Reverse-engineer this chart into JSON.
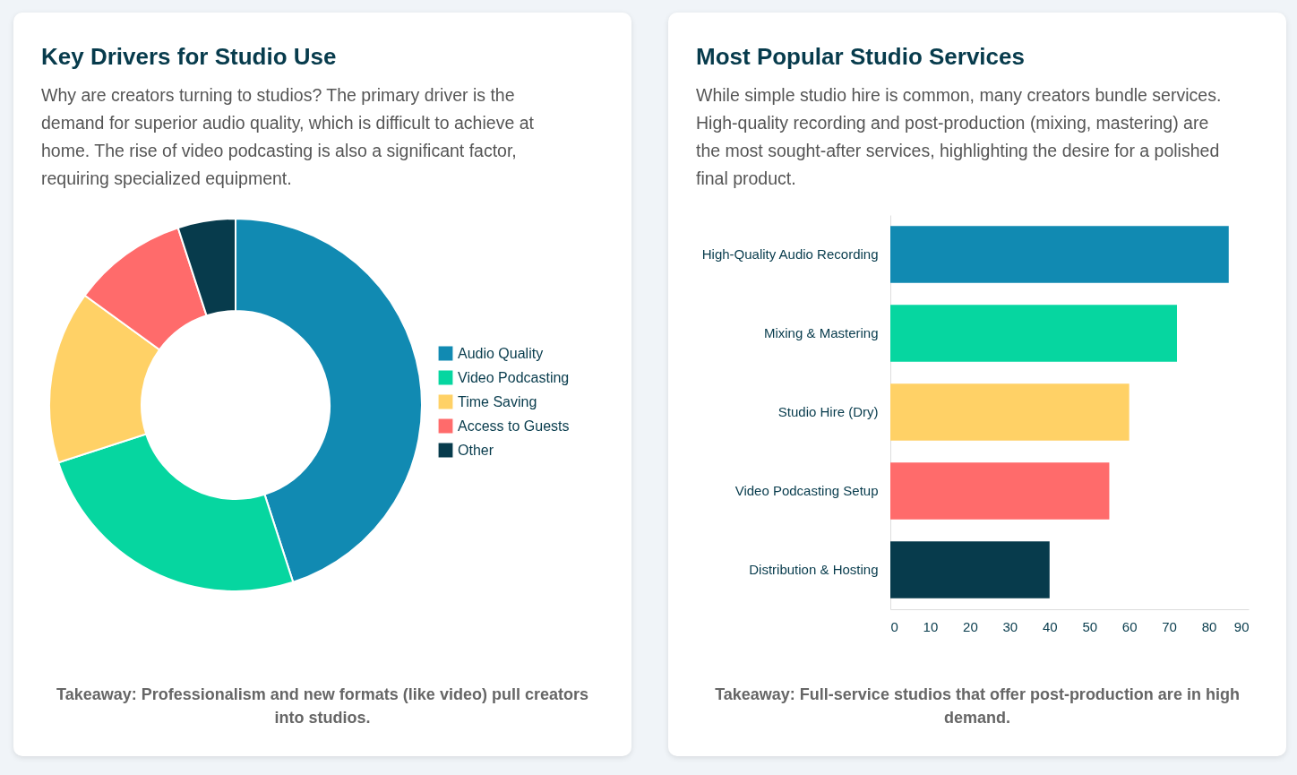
{
  "chart_data": [
    {
      "type": "donut",
      "title": "Key Drivers for Studio Use",
      "subtitle": "Why are creators turning to studios? The primary driver is the demand for superior audio quality, which is difficult to achieve at home. The rise of video podcasting is also a significant factor, requiring specialized equipment.",
      "categories": [
        "Audio Quality",
        "Video Podcasting",
        "Time Saving",
        "Access to Guests",
        "Other"
      ],
      "values": [
        45,
        25,
        15,
        10,
        5
      ],
      "colors": [
        "#118ab2",
        "#06d6a0",
        "#ffd166",
        "#ff6b6b",
        "#073b4c"
      ],
      "legend": "right",
      "annotations": [
        "Takeaway: Professionalism and new formats (like video) pull creators into studios."
      ]
    },
    {
      "type": "bar",
      "orientation": "horizontal",
      "title": "Most Popular Studio Services",
      "subtitle": "While simple studio hire is common, many creators bundle services. High-quality recording and post-production (mixing, mastering) are the most sought-after services, highlighting the desire for a polished final product.",
      "categories": [
        "High-Quality Audio Recording",
        "Mixing & Mastering",
        "Studio Hire (Dry)",
        "Video Podcasting Setup",
        "Distribution & Hosting"
      ],
      "values": [
        85,
        72,
        60,
        55,
        40
      ],
      "colors": [
        "#118ab2",
        "#06d6a0",
        "#ffd166",
        "#ff6b6b",
        "#073b4c"
      ],
      "xlim": [
        0,
        90
      ],
      "xticks": [
        0,
        10,
        20,
        30,
        40,
        50,
        60,
        70,
        80,
        90
      ],
      "grid": false,
      "legend": false,
      "annotations": [
        "Takeaway: Full-service studios that offer post-production are in high demand."
      ]
    }
  ]
}
